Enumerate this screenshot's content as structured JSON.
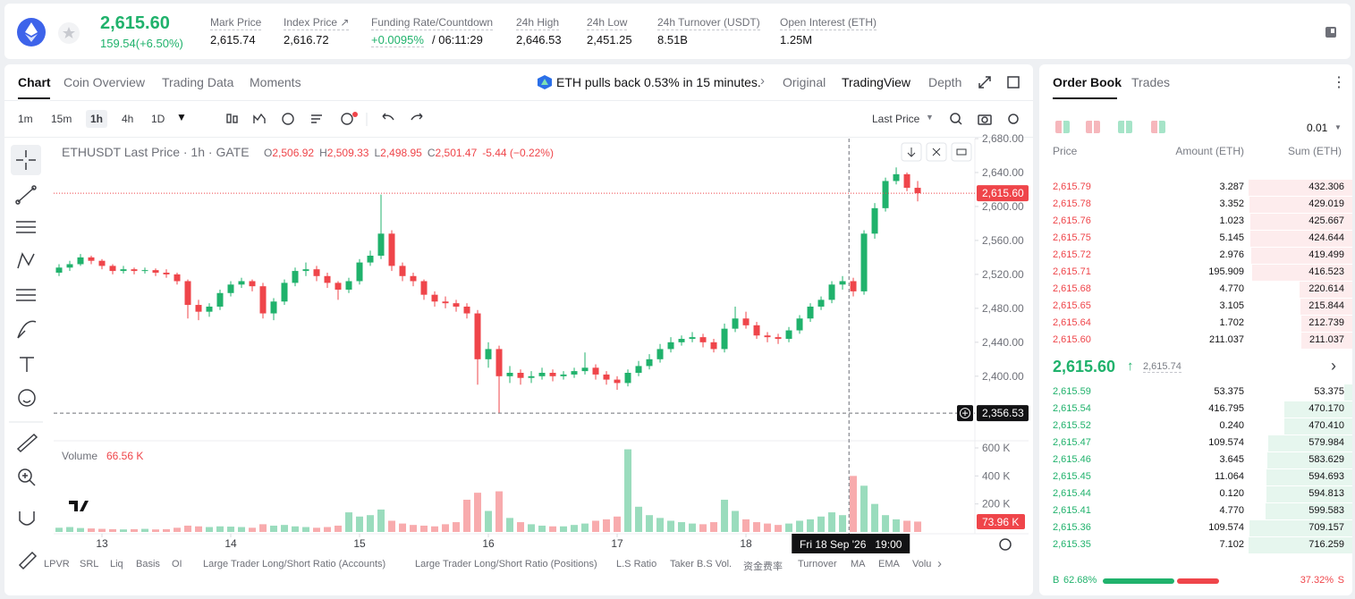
{
  "header": {
    "price": "2,615.60",
    "change": "159.54(+6.50%)",
    "stats": [
      {
        "label": "Mark Price",
        "value": "2,615.74"
      },
      {
        "label": "Index Price ↗",
        "value": "2,616.72"
      },
      {
        "label": "Funding Rate/Countdown",
        "value": "+0.0095%",
        "extra": "/ 06:11:29"
      },
      {
        "label": "24h High",
        "value": "2,646.53"
      },
      {
        "label": "24h Low",
        "value": "2,451.25"
      },
      {
        "label": "24h Turnover (USDT)",
        "value": "8.51B"
      },
      {
        "label": "Open Interest (ETH)",
        "value": "1.25M"
      }
    ]
  },
  "tabs": [
    "Chart",
    "Coin Overview",
    "Trading Data",
    "Moments"
  ],
  "news": "ETH pulls back 0.53% in 15 minutes.",
  "views": [
    "Original",
    "TradingView",
    "Depth"
  ],
  "intervals": [
    "1m",
    "15m",
    "1h",
    "4h",
    "1D"
  ],
  "price_source": "Last Price",
  "indicators": [
    "LPVR",
    "SRL",
    "Liq",
    "Basis",
    "OI",
    "Large Trader Long/Short Ratio (Accounts)",
    "Large Trader Long/Short Ratio (Positions)",
    "L.S Ratio",
    "Taker B.S Vol.",
    "资金费率",
    "Turnover",
    "MA",
    "EMA",
    "Volu"
  ],
  "chart_data": {
    "type": "candlestick",
    "title": "ETHUSDT Last Price · 1h · GATE",
    "ohlc_legend": [
      [
        "O",
        "2,506.92"
      ],
      [
        "H",
        "2,509.33"
      ],
      [
        "L",
        "2,498.95"
      ],
      [
        "C",
        "2,501.47"
      ]
    ],
    "legend_change": "-5.44 (−0.22%)",
    "up_color": "#20b26c",
    "down_color": "#ef454a",
    "candles": [
      [
        2522,
        2532,
        2518,
        2528
      ],
      [
        2528,
        2536,
        2524,
        2532
      ],
      [
        2532,
        2544,
        2530,
        2540
      ],
      [
        2540,
        2542,
        2532,
        2536
      ],
      [
        2536,
        2538,
        2526,
        2530
      ],
      [
        2530,
        2532,
        2520,
        2524
      ],
      [
        2524,
        2530,
        2521,
        2526
      ],
      [
        2526,
        2528,
        2520,
        2524
      ],
      [
        2524,
        2528,
        2521,
        2525
      ],
      [
        2525,
        2527,
        2518,
        2522
      ],
      [
        2522,
        2526,
        2516,
        2520
      ],
      [
        2520,
        2522,
        2508,
        2512
      ],
      [
        2512,
        2514,
        2468,
        2484
      ],
      [
        2484,
        2490,
        2466,
        2476
      ],
      [
        2476,
        2486,
        2470,
        2482
      ],
      [
        2482,
        2502,
        2478,
        2498
      ],
      [
        2498,
        2512,
        2494,
        2508
      ],
      [
        2508,
        2516,
        2504,
        2512
      ],
      [
        2512,
        2514,
        2500,
        2506
      ],
      [
        2506,
        2510,
        2468,
        2474
      ],
      [
        2474,
        2492,
        2466,
        2488
      ],
      [
        2488,
        2514,
        2484,
        2510
      ],
      [
        2510,
        2528,
        2506,
        2524
      ],
      [
        2524,
        2534,
        2518,
        2526
      ],
      [
        2526,
        2530,
        2512,
        2518
      ],
      [
        2518,
        2522,
        2504,
        2510
      ],
      [
        2510,
        2512,
        2490,
        2502
      ],
      [
        2502,
        2516,
        2498,
        2512
      ],
      [
        2512,
        2538,
        2508,
        2534
      ],
      [
        2534,
        2548,
        2530,
        2542
      ],
      [
        2542,
        2614,
        2538,
        2568
      ],
      [
        2568,
        2572,
        2524,
        2530
      ],
      [
        2530,
        2534,
        2512,
        2518
      ],
      [
        2518,
        2522,
        2506,
        2512
      ],
      [
        2512,
        2514,
        2490,
        2496
      ],
      [
        2496,
        2500,
        2482,
        2488
      ],
      [
        2488,
        2494,
        2480,
        2486
      ],
      [
        2486,
        2490,
        2476,
        2482
      ],
      [
        2482,
        2486,
        2468,
        2474
      ],
      [
        2474,
        2478,
        2390,
        2420
      ],
      [
        2420,
        2440,
        2410,
        2432
      ],
      [
        2432,
        2436,
        2356.53,
        2400
      ],
      [
        2400,
        2412,
        2392,
        2404
      ],
      [
        2404,
        2408,
        2390,
        2398
      ],
      [
        2398,
        2406,
        2392,
        2400
      ],
      [
        2400,
        2410,
        2396,
        2404
      ],
      [
        2404,
        2408,
        2394,
        2400
      ],
      [
        2400,
        2406,
        2396,
        2402
      ],
      [
        2402,
        2410,
        2398,
        2406
      ],
      [
        2406,
        2428,
        2402,
        2410
      ],
      [
        2410,
        2414,
        2396,
        2402
      ],
      [
        2402,
        2406,
        2390,
        2396
      ],
      [
        2396,
        2400,
        2384,
        2392
      ],
      [
        2392,
        2408,
        2388,
        2404
      ],
      [
        2404,
        2418,
        2400,
        2412
      ],
      [
        2412,
        2426,
        2408,
        2420
      ],
      [
        2420,
        2438,
        2416,
        2432
      ],
      [
        2432,
        2446,
        2428,
        2440
      ],
      [
        2440,
        2448,
        2436,
        2444
      ],
      [
        2444,
        2452,
        2440,
        2446
      ],
      [
        2446,
        2450,
        2434,
        2440
      ],
      [
        2440,
        2444,
        2428,
        2432
      ],
      [
        2432,
        2462,
        2428,
        2456
      ],
      [
        2456,
        2482,
        2452,
        2468
      ],
      [
        2468,
        2476,
        2456,
        2460
      ],
      [
        2460,
        2464,
        2444,
        2448
      ],
      [
        2448,
        2452,
        2440,
        2446
      ],
      [
        2446,
        2450,
        2438,
        2444
      ],
      [
        2444,
        2458,
        2440,
        2454
      ],
      [
        2454,
        2472,
        2450,
        2468
      ],
      [
        2468,
        2486,
        2464,
        2482
      ],
      [
        2482,
        2494,
        2478,
        2490
      ],
      [
        2490,
        2512,
        2486,
        2508
      ],
      [
        2508,
        2518,
        2502,
        2512
      ],
      [
        2512,
        2516,
        2494,
        2500
      ],
      [
        2500,
        2572,
        2496,
        2568
      ],
      [
        2568,
        2604,
        2562,
        2598
      ],
      [
        2598,
        2634,
        2594,
        2630
      ],
      [
        2630,
        2646,
        2626,
        2638
      ],
      [
        2638,
        2640,
        2618,
        2622
      ],
      [
        2622,
        2630,
        2606,
        2615.6
      ]
    ],
    "ylim": [
      2325,
      2680
    ],
    "yticks": [
      {
        "value": 2400,
        "label": "2,400.00"
      },
      {
        "value": 2440,
        "label": "2,440.00"
      },
      {
        "value": 2480,
        "label": "2,480.00"
      },
      {
        "value": 2520,
        "label": "2,520.00"
      },
      {
        "value": 2560,
        "label": "2,560.00"
      },
      {
        "value": 2600,
        "label": "2,600.00"
      },
      {
        "value": 2640,
        "label": "2,640.00"
      },
      {
        "value": 2680,
        "label": "2,680.00"
      }
    ],
    "xlim": [
      -0.5,
      85.33
    ],
    "xticks": [
      {
        "value": 4,
        "label": "13"
      },
      {
        "value": 16,
        "label": "14"
      },
      {
        "value": 28,
        "label": "15"
      },
      {
        "value": 40,
        "label": "16"
      },
      {
        "value": 52,
        "label": "17"
      },
      {
        "value": 64,
        "label": "18"
      }
    ],
    "last_price": {
      "value": 2615.6,
      "label": "2,615.60"
    },
    "crosshair_price": {
      "value": 2356.53,
      "label": "2,356.53"
    },
    "crosshair_x": 73.6,
    "crosshair_time": "Fri 18 Sep '26   19:00",
    "volume": {
      "title": "Volume",
      "legend_value": {
        "value": 66.56,
        "label": "66.56 K"
      },
      "last_label": "73.96 K",
      "values": [
        30,
        35,
        28,
        25,
        22,
        20,
        18,
        20,
        22,
        18,
        20,
        30,
        45,
        40,
        35,
        40,
        38,
        35,
        30,
        55,
        45,
        50,
        40,
        35,
        30,
        35,
        45,
        140,
        110,
        120,
        160,
        80,
        60,
        50,
        45,
        40,
        55,
        70,
        230,
        280,
        150,
        290,
        100,
        70,
        55,
        45,
        40,
        40,
        50,
        60,
        80,
        90,
        110,
        590,
        180,
        120,
        100,
        80,
        70,
        60,
        55,
        70,
        230,
        150,
        90,
        70,
        60,
        50,
        60,
        80,
        90,
        110,
        140,
        120,
        400,
        330,
        200,
        120,
        90,
        80,
        73.96
      ],
      "ylim": [
        0,
        600
      ],
      "yticks": [
        {
          "value": 200,
          "label": "200 K"
        },
        {
          "value": 400,
          "label": "400 K"
        },
        {
          "value": 600,
          "label": "600 K"
        }
      ]
    }
  },
  "order_book": {
    "tabs": [
      "Order Book",
      "Trades"
    ],
    "precision": "0.01",
    "columns": [
      "Price",
      "Amount (ETH)",
      "Sum (ETH)"
    ],
    "asks": [
      {
        "price": "2,615.79",
        "amount": "3.287",
        "sum": 432.306
      },
      {
        "price": "2,615.78",
        "amount": "3.352",
        "sum": 429.019
      },
      {
        "price": "2,615.76",
        "amount": "1.023",
        "sum": 425.667
      },
      {
        "price": "2,615.75",
        "amount": "5.145",
        "sum": 424.644
      },
      {
        "price": "2,615.72",
        "amount": "2.976",
        "sum": 419.499
      },
      {
        "price": "2,615.71",
        "amount": "195.909",
        "sum": 416.523
      },
      {
        "price": "2,615.68",
        "amount": "4.770",
        "sum": 220.614
      },
      {
        "price": "2,615.65",
        "amount": "3.105",
        "sum": 215.844
      },
      {
        "price": "2,615.64",
        "amount": "1.702",
        "sum": 212.739
      },
      {
        "price": "2,615.60",
        "amount": "211.037",
        "sum": 211.037
      }
    ],
    "mid_price": "2,615.60",
    "mark_price": "2,615.74",
    "bids": [
      {
        "price": "2,615.59",
        "amount": "53.375",
        "sum": 53.375
      },
      {
        "price": "2,615.54",
        "amount": "416.795",
        "sum": {
          "value": 470.17,
          "label": "470.170"
        }
      },
      {
        "price": "2,615.52",
        "amount": "0.240",
        "sum": {
          "value": 470.41,
          "label": "470.410"
        }
      },
      {
        "price": "2,615.47",
        "amount": "109.574",
        "sum": 579.984
      },
      {
        "price": "2,615.46",
        "amount": "3.645",
        "sum": 583.629
      },
      {
        "price": "2,615.45",
        "amount": "11.064",
        "sum": 594.693
      },
      {
        "price": "2,615.44",
        "amount": "0.120",
        "sum": 594.813
      },
      {
        "price": "2,615.41",
        "amount": "4.770",
        "sum": 599.583
      },
      {
        "price": "2,615.36",
        "amount": "109.574",
        "sum": 709.157
      },
      {
        "price": "2,615.35",
        "amount": "7.102",
        "sum": 716.259
      }
    ],
    "buy_label": "B",
    "buy_ratio": {
      "value": 62.68,
      "label": "62.68%"
    },
    "sell_ratio": {
      "value": 37.32,
      "label": "37.32%"
    },
    "sell_label": "S"
  }
}
